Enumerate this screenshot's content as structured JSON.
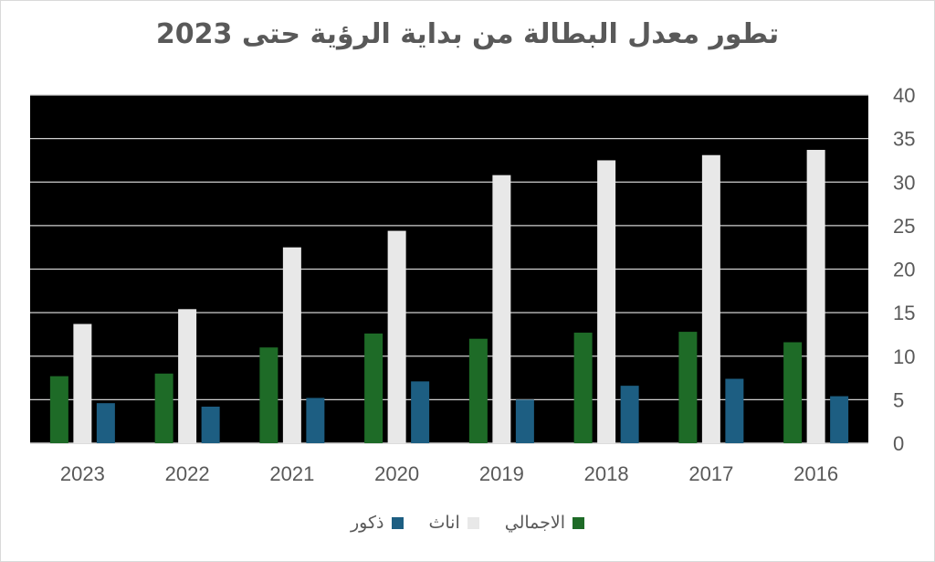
{
  "chart_data": {
    "type": "bar",
    "title": "تطور معدل البطالة من بداية الرؤية حتى 2023",
    "xlabel": "",
    "ylabel": "",
    "ylim": [
      0,
      40
    ],
    "yticks": [
      "0",
      "5",
      "10",
      "15",
      "20",
      "25",
      "30",
      "35",
      "40"
    ],
    "y_axis_side": "right",
    "grid": true,
    "legend_position": "bottom",
    "categories": [
      "2023",
      "2022",
      "2021",
      "2020",
      "2019",
      "2018",
      "2017",
      "2016"
    ],
    "series": [
      {
        "name": "الاجمالي",
        "color": "#1e6b27",
        "values": [
          7.7,
          8.0,
          11.0,
          12.6,
          12.0,
          12.7,
          12.8,
          11.6
        ]
      },
      {
        "name": "اناث",
        "color": "#e8e8e8",
        "values": [
          13.7,
          15.4,
          22.5,
          24.4,
          30.8,
          32.5,
          33.1,
          33.7
        ]
      },
      {
        "name": "ذكور",
        "color": "#1d5e82",
        "values": [
          4.6,
          4.2,
          5.2,
          7.1,
          5.0,
          6.6,
          7.4,
          5.4
        ]
      }
    ],
    "colors": {
      "plot_background": "#000000",
      "gridline": "#d0d0d0",
      "axis_text": "#595959"
    }
  }
}
